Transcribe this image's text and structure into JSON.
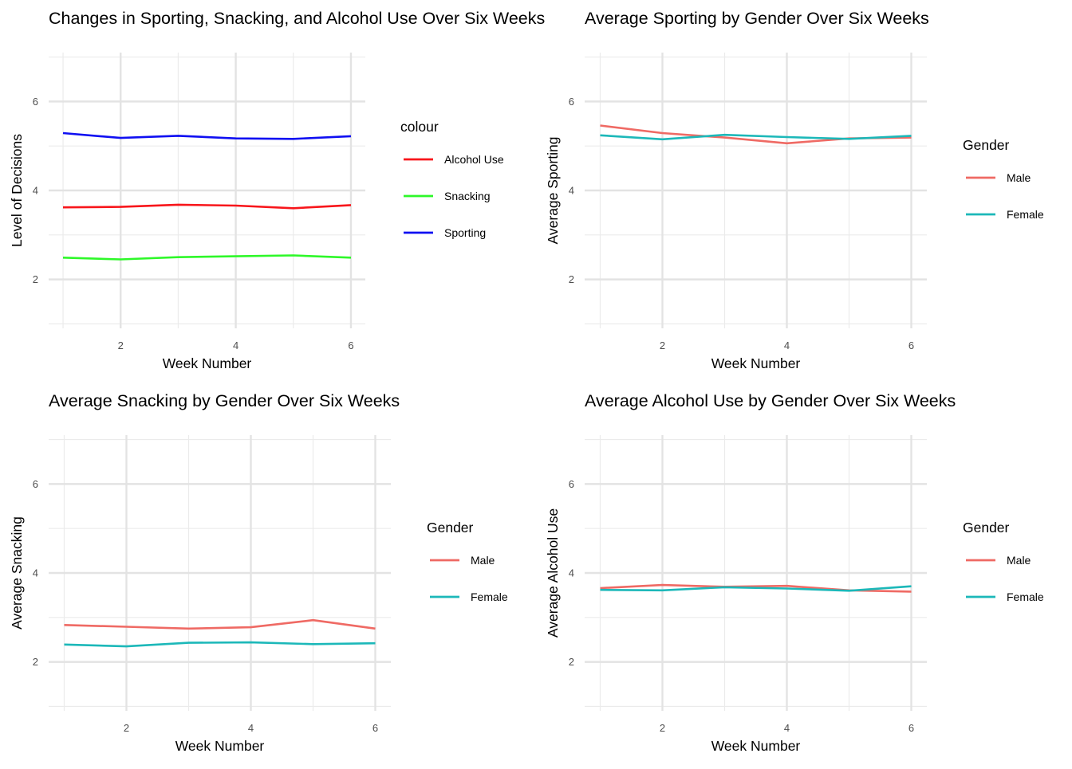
{
  "chart_data": [
    {
      "type": "line",
      "title": "Changes in Sporting, Snacking, and Alcohol Use Over Six Weeks",
      "xlabel": "Week Number",
      "ylabel": "Level of Decisions",
      "xlim": [
        0.75,
        6.25
      ],
      "ylim": [
        0.9,
        7.1
      ],
      "x_ticks": [
        2,
        4,
        6
      ],
      "y_ticks": [
        2,
        4,
        6
      ],
      "grid": true,
      "legend": {
        "title": "colour",
        "placement": "right"
      },
      "x": [
        1,
        2,
        3,
        4,
        5,
        6
      ],
      "series": [
        {
          "name": "Alcohol Use",
          "color": "#f8161b",
          "values": [
            3.62,
            3.63,
            3.68,
            3.66,
            3.6,
            3.67
          ]
        },
        {
          "name": "Snacking",
          "color": "#2ef829",
          "values": [
            2.49,
            2.45,
            2.5,
            2.52,
            2.54,
            2.49
          ]
        },
        {
          "name": "Sporting",
          "color": "#0f0ff2",
          "values": [
            5.29,
            5.18,
            5.23,
            5.17,
            5.16,
            5.22
          ]
        }
      ]
    },
    {
      "type": "line",
      "title": "Average Sporting by Gender Over Six Weeks",
      "xlabel": "Week Number",
      "ylabel": "Average Sporting",
      "xlim": [
        0.75,
        6.25
      ],
      "ylim": [
        0.9,
        7.1
      ],
      "x_ticks": [
        2,
        4,
        6
      ],
      "y_ticks": [
        2,
        4,
        6
      ],
      "grid": true,
      "legend": {
        "title": "Gender",
        "placement": "right"
      },
      "x": [
        1,
        2,
        3,
        4,
        5,
        6
      ],
      "series": [
        {
          "name": "Male",
          "color": "#ef6a64",
          "values": [
            5.46,
            5.29,
            5.19,
            5.06,
            5.17,
            5.19
          ]
        },
        {
          "name": "Female",
          "color": "#1cb8b9",
          "values": [
            5.24,
            5.15,
            5.25,
            5.2,
            5.16,
            5.23
          ]
        }
      ]
    },
    {
      "type": "line",
      "title": "Average Snacking by Gender Over Six Weeks",
      "xlabel": "Week Number",
      "ylabel": "Average Snacking",
      "xlim": [
        0.75,
        6.25
      ],
      "ylim": [
        0.9,
        7.1
      ],
      "x_ticks": [
        2,
        4,
        6
      ],
      "y_ticks": [
        2,
        4,
        6
      ],
      "grid": true,
      "legend": {
        "title": "Gender",
        "placement": "right"
      },
      "x": [
        1,
        2,
        3,
        4,
        5,
        6
      ],
      "series": [
        {
          "name": "Male",
          "color": "#ef6a64",
          "values": [
            2.83,
            2.79,
            2.75,
            2.78,
            2.94,
            2.75
          ]
        },
        {
          "name": "Female",
          "color": "#1cb8b9",
          "values": [
            2.39,
            2.35,
            2.43,
            2.44,
            2.4,
            2.42
          ]
        }
      ]
    },
    {
      "type": "line",
      "title": "Average Alcohol Use by Gender Over Six Weeks",
      "xlabel": "Week Number",
      "ylabel": "Average Alcohol Use",
      "xlim": [
        0.75,
        6.25
      ],
      "ylim": [
        0.9,
        7.1
      ],
      "x_ticks": [
        2,
        4,
        6
      ],
      "y_ticks": [
        2,
        4,
        6
      ],
      "grid": true,
      "legend": {
        "title": "Gender",
        "placement": "right"
      },
      "x": [
        1,
        2,
        3,
        4,
        5,
        6
      ],
      "series": [
        {
          "name": "Male",
          "color": "#ef6a64",
          "values": [
            3.66,
            3.73,
            3.69,
            3.71,
            3.61,
            3.58
          ]
        },
        {
          "name": "Female",
          "color": "#1cb8b9",
          "values": [
            3.62,
            3.61,
            3.68,
            3.65,
            3.6,
            3.7
          ]
        }
      ]
    }
  ]
}
